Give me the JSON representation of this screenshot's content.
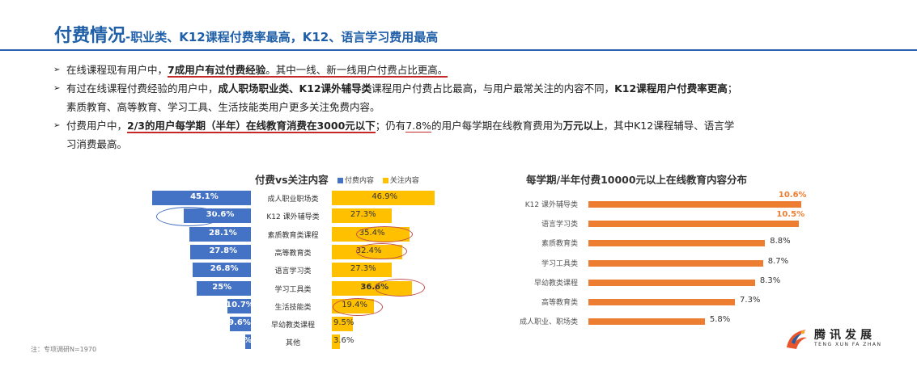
{
  "header": {
    "title_main": "付费情况",
    "title_sub": "-职业类、K12课程付费率最高，K12、语言学习费用最高"
  },
  "bullets": {
    "b1": {
      "t1": "在线课程现有用户中，",
      "t2": "7成用户有过付费经验",
      "t3": "。其中一线、新一线用户付费占比更高。"
    },
    "b2": {
      "t1": "有过在线课程付费经验的用户中，",
      "t2": "成人职场职业类、K12课外辅导类",
      "t3": "课程用户付费占比最高，与用户最常关注的内容不同，",
      "t4": "K12课程用户付费率更高",
      "t5": "；",
      "line2": "素质教育、高等教育、学习工具、生活技能类用户更多关注免费内容。"
    },
    "b3": {
      "t1": "付费用户中，",
      "t2": "2/3的用户每学期（半年）在线教育消费在3000元以下",
      "t3": "；仍有",
      "t4": "7.8%",
      "t5": "的用户每学期在线教育费用为",
      "t6": "万元以上",
      "t7": "，其中K12课程辅导、语言学",
      "line2": "习消费最高。"
    }
  },
  "left_chart": {
    "title": "付费vs关注内容",
    "legend": [
      "付费内容",
      "关注内容"
    ]
  },
  "right_chart": {
    "title": "每学期/半年付费10000元以上在线教育内容分布"
  },
  "chart_data": [
    {
      "type": "bar",
      "title": "付费vs关注内容",
      "categories": [
        "成人职业职场类",
        "K12 课外辅导类",
        "素质教育类课程",
        "高等教育类",
        "语言学习类",
        "学习工具类",
        "生活技能类",
        "早幼教类课程",
        "其他"
      ],
      "series": [
        {
          "name": "付费内容",
          "values": [
            45.1,
            30.6,
            28.1,
            27.8,
            26.8,
            25,
            10.7,
            9.6,
            2.5
          ],
          "labels": [
            "45.1%",
            "30.6%",
            "28.1%",
            "27.8%",
            "26.8%",
            "25%",
            "10.7%",
            "9.6%",
            "%"
          ]
        },
        {
          "name": "关注内容",
          "values": [
            46.9,
            27.3,
            35.4,
            32.4,
            27.3,
            36.6,
            19.4,
            9.5,
            3.6
          ],
          "labels": [
            "46.9%",
            "27.3%",
            "35.4%",
            "32.4%",
            "27.3%",
            "36.6%",
            "19.4%",
            "9.5%",
            "3.6%"
          ]
        }
      ]
    },
    {
      "type": "bar",
      "title": "每学期/半年付费10000元以上在线教育内容分布",
      "categories": [
        "K12 课外辅导类",
        "语言学习类",
        "素质教育类",
        "学习工具类",
        "早幼教类课程",
        "高等教育类",
        "成人职业、职场类"
      ],
      "values": [
        10.6,
        10.5,
        8.8,
        8.7,
        8.3,
        7.3,
        5.8
      ],
      "labels": [
        "10.6%",
        "10.5%",
        "8.8%",
        "8.7%",
        "8.3%",
        "7.3%",
        "5.8%"
      ]
    }
  ],
  "footnote": "注：专项调研N=1970",
  "logo": {
    "name": "腾讯发展",
    "en": "TENG XUN FA ZHAN",
    "icon": "phoenix-logo-icon"
  },
  "colors": {
    "title": "#1f5fa8",
    "blue_bar": "#4472c4",
    "gold_bar": "#ffc000",
    "orange_bar": "#ed7d31",
    "underline": "#c62828"
  }
}
